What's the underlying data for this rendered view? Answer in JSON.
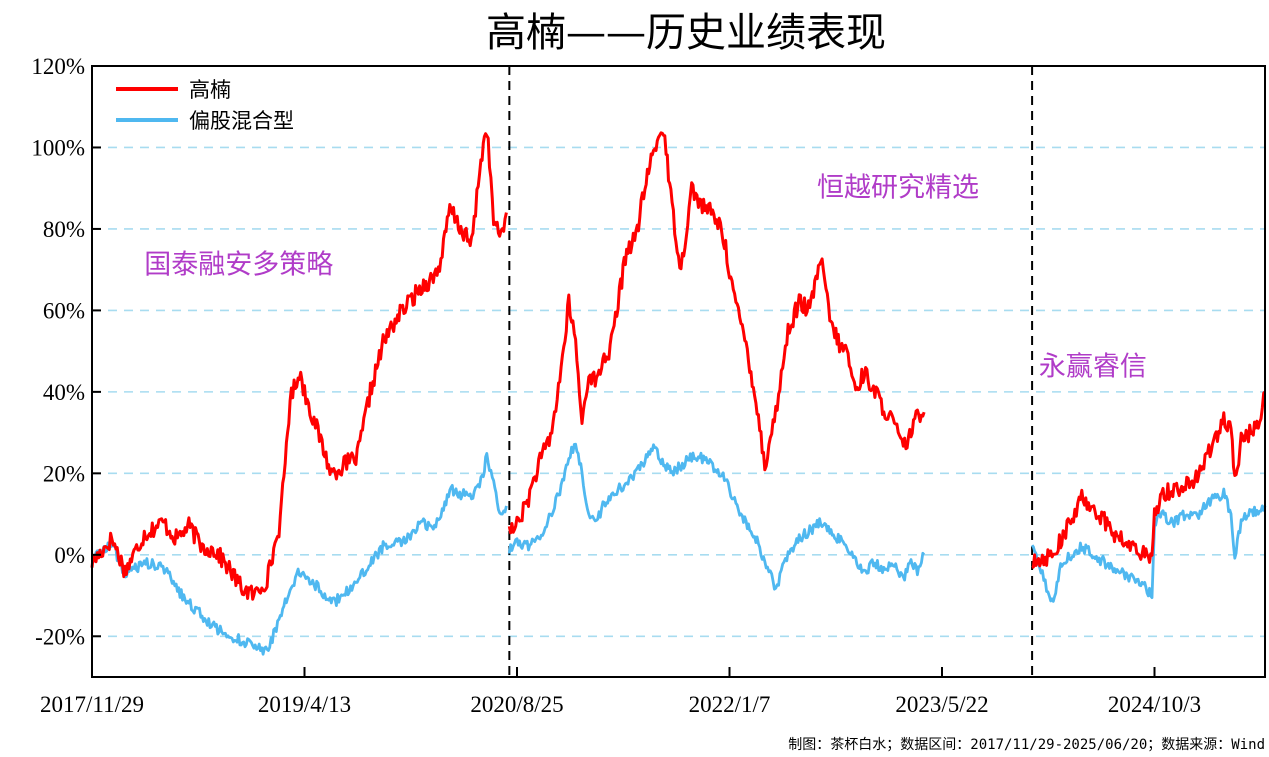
{
  "chart_data": {
    "type": "line",
    "title": "高楠——历史业绩表现",
    "yticks": [
      "120%",
      "100%",
      "80%",
      "60%",
      "40%",
      "20%",
      "0%",
      "-20%"
    ],
    "ytick_values": [
      120,
      100,
      80,
      60,
      40,
      20,
      0,
      -20
    ],
    "ylim": [
      -30,
      120
    ],
    "x_range": [
      "2017-11-29",
      "2025-06-20"
    ],
    "xticks": [
      {
        "label": "2017/11/29",
        "date": "2017-11-29"
      },
      {
        "label": "2019/4/13",
        "date": "2019-04-13"
      },
      {
        "label": "2020/8/25",
        "date": "2020-08-25"
      },
      {
        "label": "2022/1/7",
        "date": "2022-01-07"
      },
      {
        "label": "2023/5/22",
        "date": "2023-05-22"
      },
      {
        "label": "2024/10/3",
        "date": "2024-10-03"
      }
    ],
    "grid": true,
    "legend_position": "top-left",
    "manager_breaks": [
      "2020-08-07",
      "2023-12-20"
    ],
    "annotations": [
      {
        "text": "国泰融安多策略",
        "x": "2018-04-01",
        "y": 69
      },
      {
        "text": "恒越研究精选",
        "x": "2022-08-01",
        "y": 88
      },
      {
        "text": "永赢睿信",
        "x": "2024-01-05",
        "y": 44
      }
    ],
    "series": [
      {
        "name": "高楠",
        "color": "#ff0000",
        "segments": [
          {
            "x": [
              "2017-11-29",
              "2018-01-15",
              "2018-02-15",
              "2018-04-01",
              "2018-05-15",
              "2018-06-15",
              "2018-07-15",
              "2018-08-15",
              "2018-09-15",
              "2018-10-15",
              "2018-11-15",
              "2018-12-15",
              "2019-01-15",
              "2019-02-15",
              "2019-03-10",
              "2019-04-01",
              "2019-04-13",
              "2019-05-15",
              "2019-06-15",
              "2019-07-15",
              "2019-08-15",
              "2019-09-15",
              "2019-10-15",
              "2019-11-15",
              "2019-12-15",
              "2020-01-15",
              "2020-02-10",
              "2020-02-28",
              "2020-03-20",
              "2020-04-15",
              "2020-05-10",
              "2020-06-01",
              "2020-06-15",
              "2020-07-01",
              "2020-07-15",
              "2020-07-31"
            ],
            "y": [
              -2,
              4,
              -4,
              5,
              8,
              4,
              7,
              2,
              1,
              -3,
              -8,
              -10,
              -6,
              8,
              38,
              45,
              40,
              30,
              20,
              22,
              24,
              40,
              52,
              58,
              62,
              66,
              68,
              72,
              85,
              80,
              76,
              97,
              105,
              82,
              78,
              84
            ]
          },
          {
            "x": [
              "2020-08-07",
              "2020-08-25",
              "2020-09-15",
              "2020-10-15",
              "2020-11-15",
              "2020-12-10",
              "2020-12-25",
              "2021-01-10",
              "2021-01-25",
              "2021-02-10",
              "2021-02-28",
              "2021-03-15",
              "2021-04-01",
              "2021-04-20",
              "2021-05-10",
              "2021-06-01",
              "2021-06-25",
              "2021-07-15",
              "2021-08-05",
              "2021-08-25",
              "2021-09-15",
              "2021-10-10",
              "2021-11-01",
              "2021-11-25",
              "2021-12-20",
              "2022-01-07",
              "2022-01-25",
              "2022-02-15",
              "2022-03-10",
              "2022-03-31",
              "2022-04-26",
              "2022-05-25",
              "2022-06-20",
              "2022-07-15",
              "2022-08-10",
              "2022-08-31",
              "2022-09-20",
              "2022-10-10",
              "2022-10-31",
              "2022-11-20",
              "2022-12-15",
              "2023-01-05",
              "2023-01-30",
              "2023-02-20",
              "2023-03-10",
              "2023-03-25",
              "2023-04-10"
            ],
            "y": [
              5,
              8,
              12,
              22,
              30,
              48,
              62,
              52,
              32,
              45,
              42,
              48,
              50,
              62,
              75,
              78,
              92,
              100,
              105,
              85,
              70,
              90,
              86,
              84,
              80,
              70,
              60,
              52,
              38,
              22,
              35,
              55,
              62,
              60,
              73,
              58,
              52,
              50,
              40,
              45,
              40,
              36,
              32,
              26,
              30,
              34,
              35
            ]
          },
          {
            "x": [
              "2023-12-20",
              "2024-01-10",
              "2024-02-05",
              "2024-02-28",
              "2024-03-20",
              "2024-04-15",
              "2024-05-10",
              "2024-06-10",
              "2024-07-10",
              "2024-08-10",
              "2024-09-10",
              "2024-09-27",
              "2024-10-03",
              "2024-10-20",
              "2024-11-15",
              "2024-12-15",
              "2025-01-15",
              "2025-02-05",
              "2025-02-28",
              "2025-03-15",
              "2025-04-01",
              "2025-04-10",
              "2025-04-25",
              "2025-05-15",
              "2025-06-01",
              "2025-06-20"
            ],
            "y": [
              -1,
              -1,
              0,
              4,
              8,
              14,
              12,
              8,
              4,
              2,
              0,
              -2,
              10,
              15,
              16,
              17,
              19,
              25,
              30,
              33,
              30,
              18,
              28,
              30,
              31,
              40
            ]
          }
        ]
      },
      {
        "name": "偏股混合型",
        "color": "#4fb8f0",
        "segments": [
          {
            "x": [
              "2017-11-29",
              "2018-01-15",
              "2018-02-15",
              "2018-04-01",
              "2018-05-15",
              "2018-06-15",
              "2018-07-15",
              "2018-08-15",
              "2018-09-15",
              "2018-10-15",
              "2018-11-15",
              "2018-12-15",
              "2019-01-15",
              "2019-02-15",
              "2019-03-10",
              "2019-04-01",
              "2019-04-13",
              "2019-05-15",
              "2019-06-15",
              "2019-07-15",
              "2019-08-15",
              "2019-09-15",
              "2019-10-15",
              "2019-11-15",
              "2019-12-15",
              "2020-01-15",
              "2020-02-10",
              "2020-02-28",
              "2020-03-20",
              "2020-04-15",
              "2020-05-10",
              "2020-06-01",
              "2020-06-15",
              "2020-07-01",
              "2020-07-15",
              "2020-07-31"
            ],
            "y": [
              -1,
              3,
              -5,
              -2,
              -3,
              -8,
              -12,
              -15,
              -18,
              -20,
              -21,
              -22,
              -24,
              -15,
              -8,
              -4,
              -5,
              -8,
              -12,
              -10,
              -6,
              -2,
              2,
              3,
              4,
              8,
              6,
              10,
              16,
              15,
              14,
              18,
              24,
              18,
              10,
              12
            ]
          },
          {
            "x": [
              "2020-08-07",
              "2020-08-25",
              "2020-09-15",
              "2020-10-15",
              "2020-11-15",
              "2020-12-10",
              "2020-12-25",
              "2021-01-10",
              "2021-01-25",
              "2021-02-10",
              "2021-02-28",
              "2021-03-15",
              "2021-04-01",
              "2021-04-20",
              "2021-05-10",
              "2021-06-01",
              "2021-06-25",
              "2021-07-15",
              "2021-08-05",
              "2021-08-25",
              "2021-09-15",
              "2021-10-10",
              "2021-11-01",
              "2021-11-25",
              "2021-12-20",
              "2022-01-07",
              "2022-01-25",
              "2022-02-15",
              "2022-03-10",
              "2022-03-31",
              "2022-04-26",
              "2022-05-25",
              "2022-06-20",
              "2022-07-15",
              "2022-08-10",
              "2022-08-31",
              "2022-09-20",
              "2022-10-10",
              "2022-10-31",
              "2022-11-20",
              "2022-12-15",
              "2023-01-05",
              "2023-01-30",
              "2023-02-20",
              "2023-03-10",
              "2023-03-25",
              "2023-04-10"
            ],
            "y": [
              1,
              3,
              2,
              4,
              10,
              18,
              24,
              27,
              20,
              10,
              8,
              12,
              14,
              16,
              18,
              20,
              24,
              26,
              22,
              20,
              22,
              24,
              24,
              22,
              20,
              16,
              12,
              8,
              4,
              -2,
              -8,
              0,
              4,
              6,
              8,
              6,
              4,
              2,
              -2,
              -4,
              -2,
              -4,
              -2,
              -6,
              -2,
              -4,
              0
            ]
          },
          {
            "x": [
              "2023-12-20",
              "2024-01-10",
              "2024-02-05",
              "2024-02-28",
              "2024-03-20",
              "2024-04-15",
              "2024-05-10",
              "2024-06-10",
              "2024-07-10",
              "2024-08-10",
              "2024-09-10",
              "2024-09-27",
              "2024-10-03",
              "2024-10-20",
              "2024-11-15",
              "2024-12-15",
              "2025-01-15",
              "2025-02-05",
              "2025-02-28",
              "2025-03-15",
              "2025-04-01",
              "2025-04-10",
              "2025-04-25",
              "2025-05-15",
              "2025-06-01",
              "2025-06-20"
            ],
            "y": [
              2,
              -4,
              -12,
              -2,
              0,
              2,
              0,
              -2,
              -4,
              -6,
              -8,
              -10,
              8,
              10,
              8,
              10,
              10,
              13,
              14,
              15,
              10,
              0,
              8,
              10,
              11,
              12
            ]
          }
        ]
      }
    ]
  },
  "footer": "制图：茶杯白水；数据区间：2017/11/29-2025/06/20；数据来源：Wind"
}
